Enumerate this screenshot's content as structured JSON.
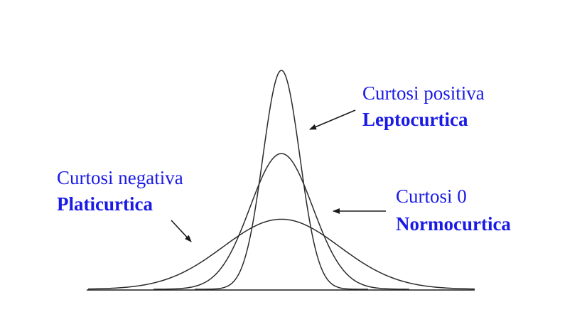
{
  "colors": {
    "label": "#1a1ae6",
    "curve": "#2b2b2b",
    "arrow": "#1a1a1a",
    "baseline": "#1a1a1a"
  },
  "labels": {
    "leptokurtic": {
      "line1": "Curtosi positiva",
      "line2": "Leptocurtica"
    },
    "mesokurtic": {
      "line1": "Curtosi 0",
      "line2": "Normocurtica"
    },
    "platykurtic": {
      "line1": "Curtosi negativa",
      "line2": "Platicurtica"
    }
  },
  "curves": [
    {
      "id": "leptokurtic",
      "relative_peak": 1.0
    },
    {
      "id": "mesokurtic",
      "relative_peak": 0.62
    },
    {
      "id": "platykurtic",
      "relative_peak": 0.32
    }
  ]
}
